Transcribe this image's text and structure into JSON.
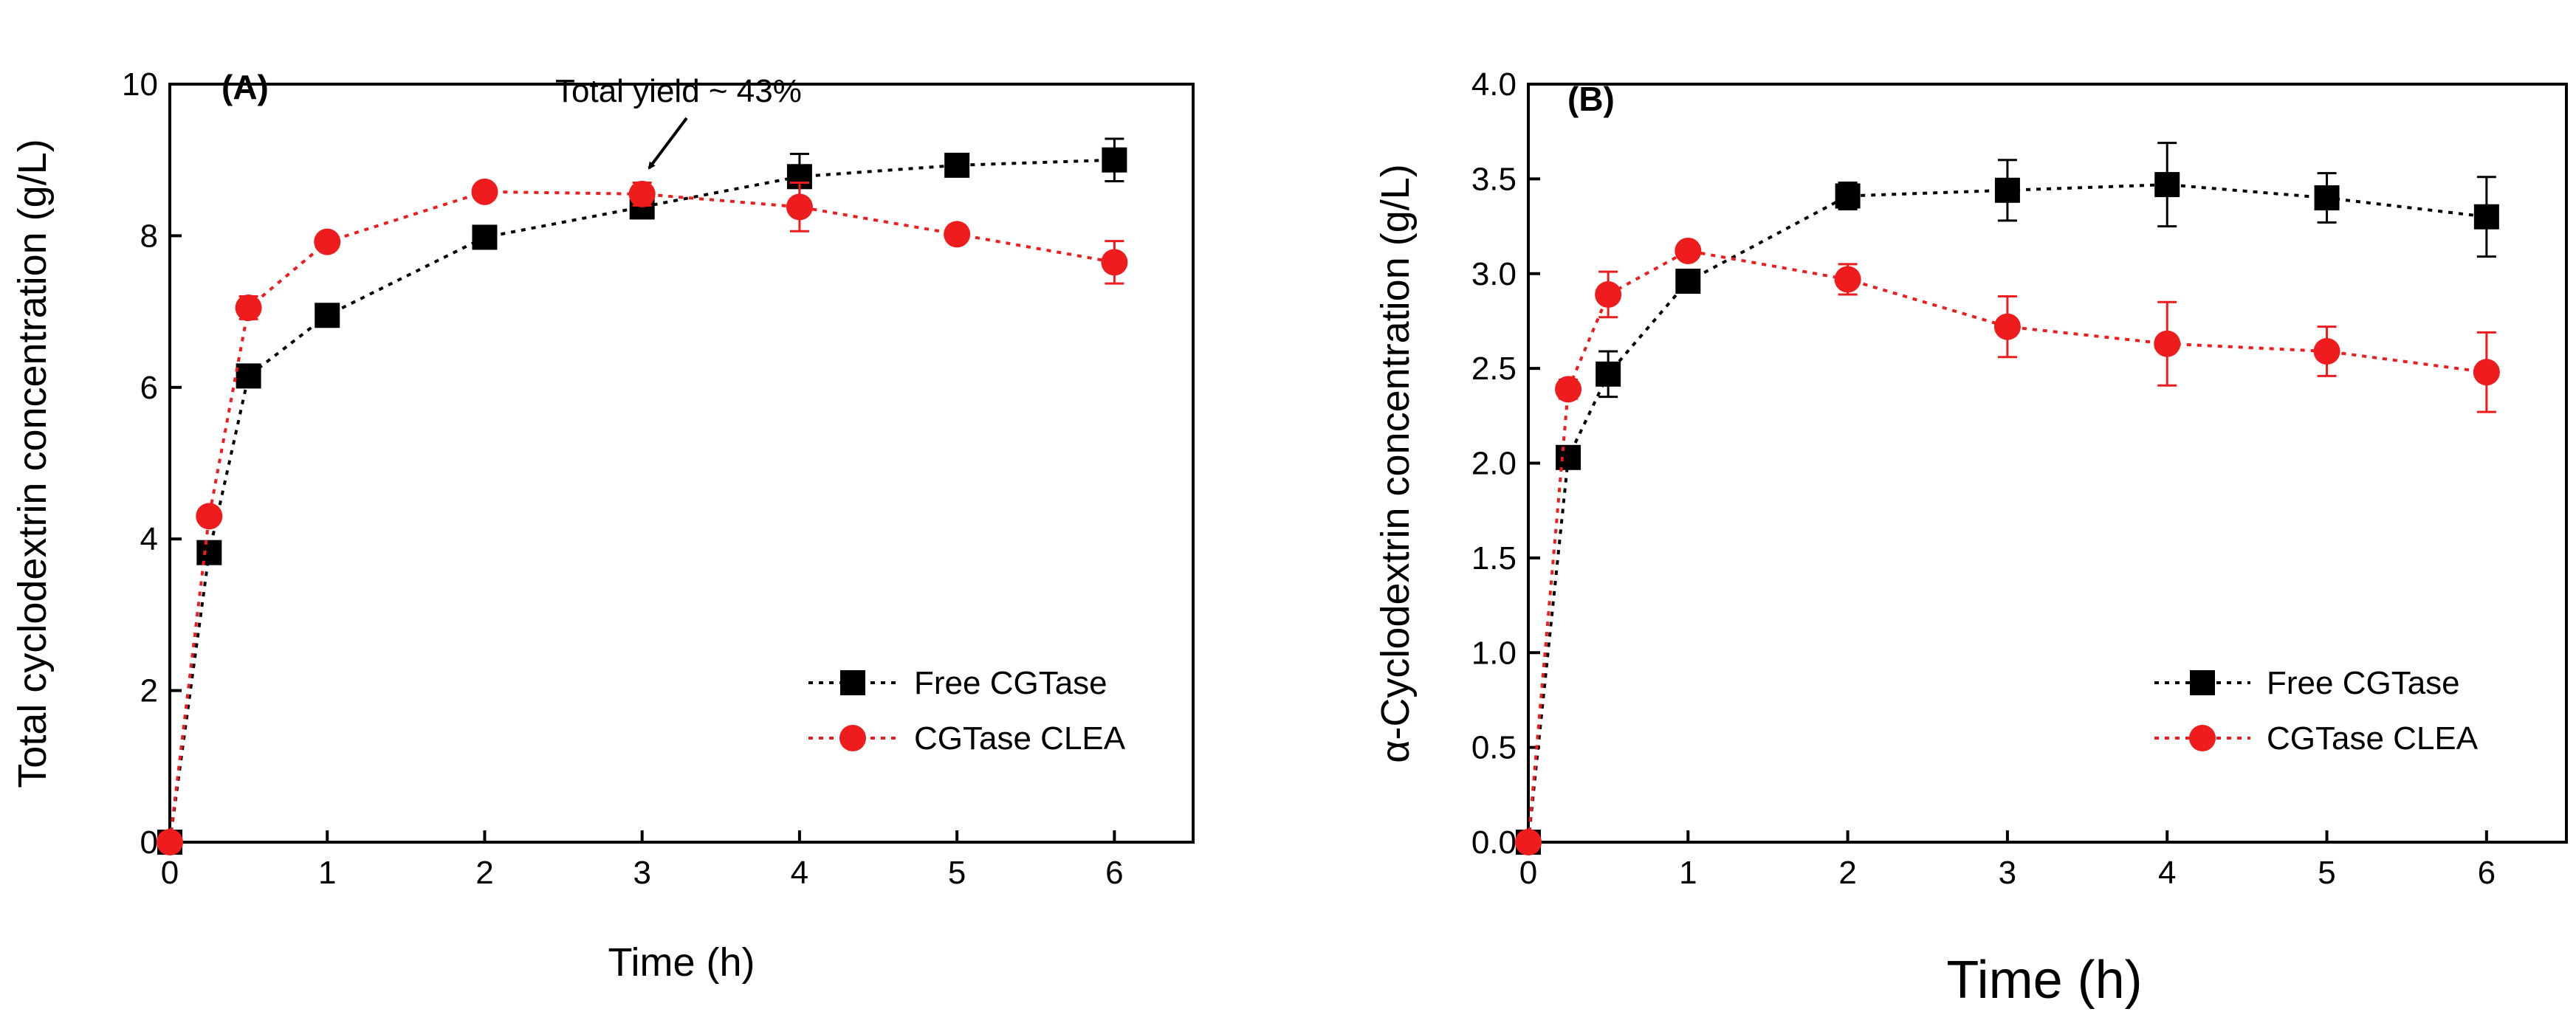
{
  "chart_data": [
    {
      "type": "line",
      "panel_label": "(A)",
      "xlabel": "Time (h)",
      "ylabel": "Total cyclodextrin concentration (g/L)",
      "xlim": [
        0,
        6.5
      ],
      "ylim": [
        0,
        10
      ],
      "xticks": [
        0,
        1,
        2,
        3,
        4,
        5,
        6
      ],
      "yticks": [
        0,
        2,
        4,
        6,
        8,
        10
      ],
      "legend_position": "bottom-right",
      "annotation": {
        "text": "Total yield ~ 43%",
        "x": 3,
        "y": 8.5
      },
      "series": [
        {
          "name": "Free CGTase",
          "color": "#000000",
          "marker": "square",
          "x": [
            0,
            0.25,
            0.5,
            1,
            2,
            3,
            4,
            5,
            6
          ],
          "y": [
            0,
            3.82,
            6.15,
            6.95,
            7.98,
            8.38,
            8.78,
            8.93,
            9.0
          ],
          "err": [
            0,
            0.1,
            0.12,
            0.08,
            0.1,
            0.15,
            0.3,
            0.1,
            0.28
          ]
        },
        {
          "name": "CGTase CLEA",
          "color": "#ee1c1c",
          "marker": "circle",
          "x": [
            0,
            0.25,
            0.5,
            1,
            2,
            3,
            4,
            5,
            6
          ],
          "y": [
            0,
            4.3,
            7.05,
            7.92,
            8.58,
            8.55,
            8.38,
            8.02,
            7.65
          ],
          "err": [
            0,
            0.1,
            0.15,
            0.08,
            0.08,
            0.15,
            0.32,
            0.1,
            0.28
          ]
        }
      ]
    },
    {
      "type": "line",
      "panel_label": "(B)",
      "xlabel": "Time (h)",
      "ylabel": "α-Cyclodextrin concentration (g/L)",
      "xlim": [
        0,
        6.5
      ],
      "ylim": [
        0,
        4.0
      ],
      "xticks": [
        0,
        1,
        2,
        3,
        4,
        5,
        6
      ],
      "yticks": [
        0.0,
        0.5,
        1.0,
        1.5,
        2.0,
        2.5,
        3.0,
        3.5,
        4.0
      ],
      "legend_position": "bottom-right",
      "series": [
        {
          "name": "Free CGTase",
          "color": "#000000",
          "marker": "square",
          "x": [
            0,
            0.25,
            0.5,
            1,
            2,
            3,
            4,
            5,
            6
          ],
          "y": [
            0,
            2.03,
            2.47,
            2.96,
            3.41,
            3.44,
            3.47,
            3.4,
            3.3
          ],
          "err": [
            0,
            0.05,
            0.12,
            0.05,
            0.07,
            0.16,
            0.22,
            0.13,
            0.21
          ]
        },
        {
          "name": "CGTase CLEA",
          "color": "#ee1c1c",
          "marker": "circle",
          "x": [
            0,
            0.25,
            0.5,
            1,
            2,
            3,
            4,
            5,
            6
          ],
          "y": [
            0,
            2.39,
            2.89,
            3.12,
            2.97,
            2.72,
            2.63,
            2.59,
            2.48
          ],
          "err": [
            0,
            0.05,
            0.12,
            0.04,
            0.08,
            0.16,
            0.22,
            0.13,
            0.21
          ]
        }
      ]
    }
  ]
}
